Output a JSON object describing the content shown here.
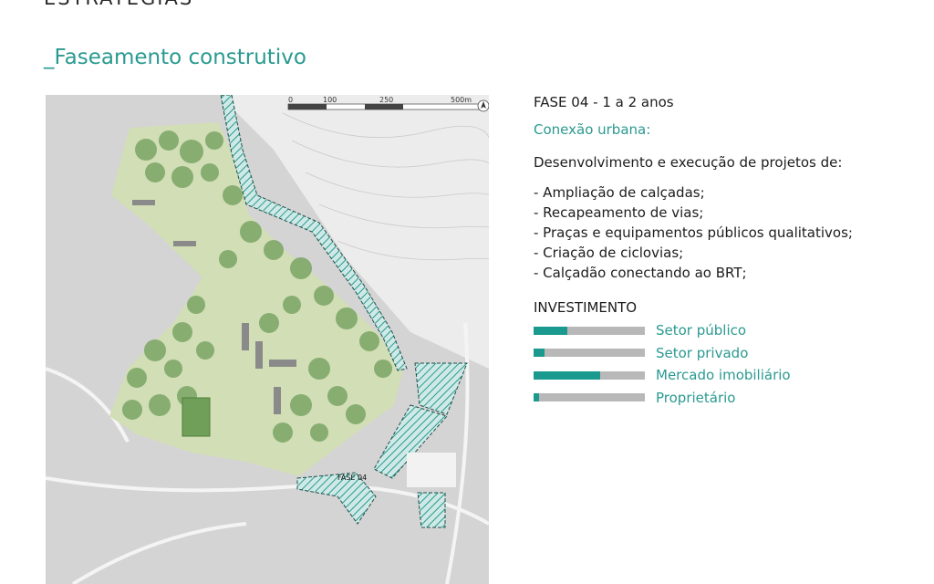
{
  "page": {
    "section_title": "ESTRATÉGIAS",
    "subtitle": "_Faseamento construtivo"
  },
  "map": {
    "scale_ticks": [
      "0",
      "100",
      "250",
      "500m"
    ],
    "phase_label": "FASE 04"
  },
  "info": {
    "phase_heading": "FASE 04 - 1 a 2 anos",
    "connection_title": "Conexão urbana:",
    "intro": "Desenvolvimento e execução de projetos de:",
    "bullets": [
      "- Ampliação de calçadas;",
      "- Recapeamento de vias;",
      "- Praças e equipamentos públicos qualitativos;",
      "- Criação de ciclovias;",
      "- Calçadão conectando ao BRT;"
    ],
    "investment_heading": "INVESTIMENTO",
    "investment": [
      {
        "label": "Setor público",
        "share": 0.3
      },
      {
        "label": "Setor privado",
        "share": 0.1
      },
      {
        "label": "Mercado imobiliário",
        "share": 0.6
      },
      {
        "label": "Proprietário",
        "share": 0.05
      }
    ]
  },
  "colors": {
    "accent": "#2a9a90",
    "bar_fill": "#1a9a8f",
    "bar_track": "#b8b8b8",
    "park": "#d2deb6",
    "trees": "#7fa86a"
  }
}
